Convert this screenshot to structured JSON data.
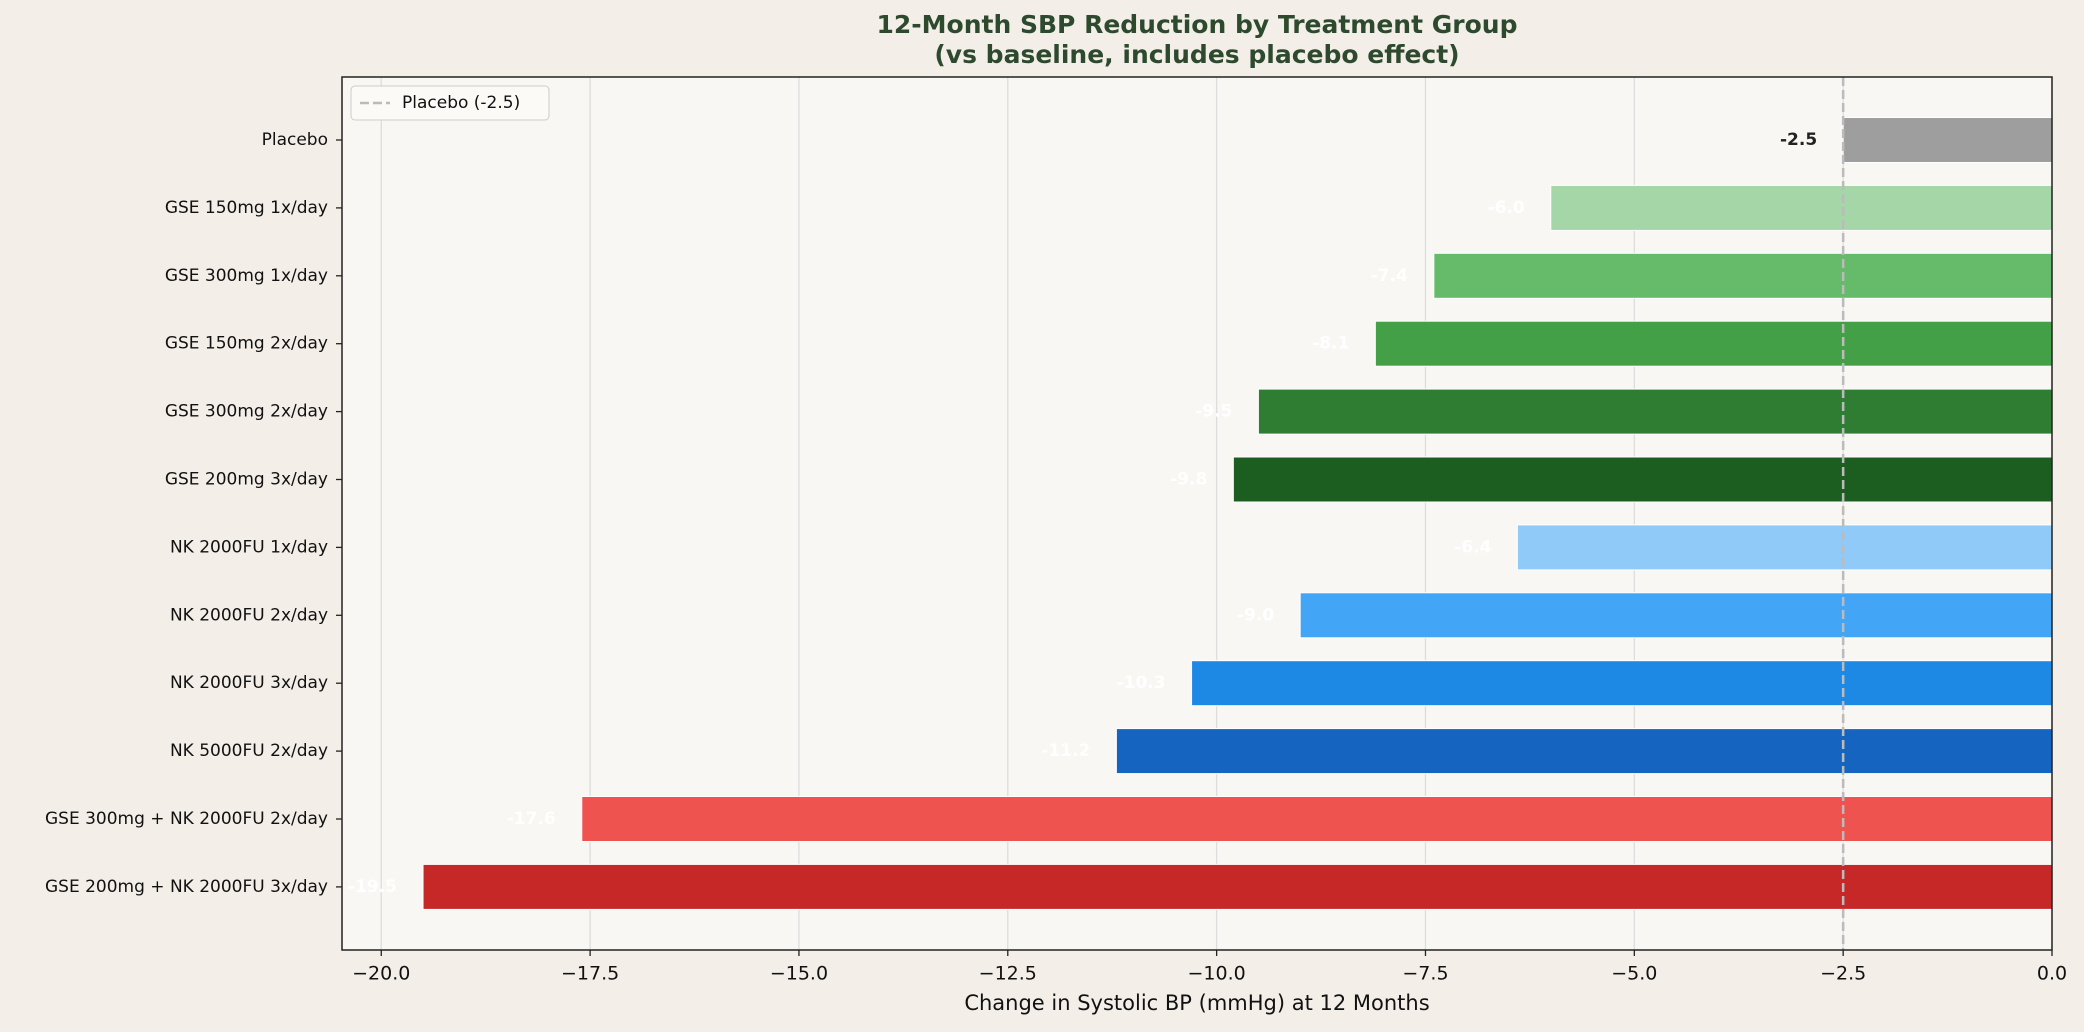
{
  "chart_data": {
    "type": "bar",
    "orientation": "horizontal",
    "title": "12-Month SBP Reduction by Treatment Group",
    "subtitle": "(vs baseline, includes placebo effect)",
    "x_label": "Change in Systolic BP (mmHg) at 12 Months",
    "categories": [
      "Placebo",
      "GSE 150mg 1x/day",
      "GSE 300mg 1x/day",
      "GSE 150mg 2x/day",
      "GSE 300mg 2x/day",
      "GSE 200mg 3x/day",
      "NK 2000FU 1x/day",
      "NK 2000FU 2x/day",
      "NK 2000FU 3x/day",
      "NK 5000FU 2x/day",
      "GSE 300mg + NK 2000FU 2x/day",
      "GSE 200mg + NK 2000FU 3x/day"
    ],
    "values": [
      -2.5,
      -6.0,
      -7.4,
      -8.1,
      -9.5,
      -9.8,
      -6.4,
      -9.0,
      -10.3,
      -11.2,
      -17.6,
      -19.5
    ],
    "value_labels": [
      "-2.5",
      "-6.0",
      "-7.4",
      "-8.1",
      "-9.5",
      "-9.8",
      "-6.4",
      "-9.0",
      "-10.3",
      "-11.2",
      "-17.6",
      "-19.5"
    ],
    "colors": [
      "#9e9e9e",
      "#a5d6a7",
      "#66bb6a",
      "#43a047",
      "#2e7d32",
      "#1b5e20",
      "#90caf9",
      "#42a5f5",
      "#1e88e5",
      "#1565c0",
      "#ef5350",
      "#c62828"
    ],
    "xlim": [
      -20.47,
      0
    ],
    "xticks": [
      {
        "value": -20,
        "label": "−20.0"
      },
      {
        "value": -17.5,
        "label": "−17.5"
      },
      {
        "value": -15,
        "label": "−15.0"
      },
      {
        "value": -12.5,
        "label": "−12.5"
      },
      {
        "value": -10,
        "label": "−10.0"
      },
      {
        "value": -7.5,
        "label": "−7.5"
      },
      {
        "value": -5,
        "label": "−5.0"
      },
      {
        "value": -2.5,
        "label": "−2.5"
      },
      {
        "value": 0,
        "label": "0.0"
      }
    ],
    "grid": true,
    "reference_line": {
      "value": -2.5,
      "label": "Placebo (-2.5)",
      "color": "#bbbbbb"
    },
    "legend": "upper left"
  }
}
